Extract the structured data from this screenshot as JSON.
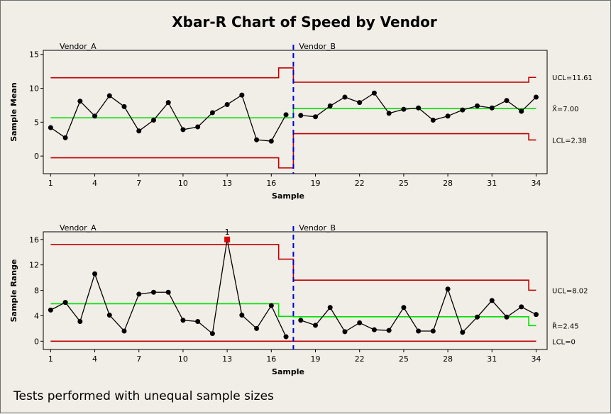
{
  "title": "Xbar-R Chart of Speed by Vendor",
  "footnote": "Tests performed with unequal sample sizes",
  "chart_data": [
    {
      "type": "line",
      "name": "xbar",
      "ylabel": "Sample Mean",
      "xlabel": "Sample",
      "xticks": [
        1,
        4,
        7,
        10,
        13,
        16,
        19,
        22,
        25,
        28,
        31,
        34
      ],
      "yticks": [
        0,
        5,
        10,
        15
      ],
      "ylim": [
        -2.6,
        15.6
      ],
      "stage_labels": [
        "Vendor_A",
        "Vendor_B"
      ],
      "stage_split": 17.5,
      "x": [
        1,
        2,
        3,
        4,
        5,
        6,
        7,
        8,
        9,
        10,
        11,
        12,
        13,
        14,
        15,
        16,
        17,
        18,
        19,
        20,
        21,
        22,
        23,
        24,
        25,
        26,
        27,
        28,
        29,
        30,
        31,
        32,
        33,
        34
      ],
      "values": [
        4.2,
        2.7,
        8.1,
        5.9,
        8.9,
        7.3,
        3.7,
        5.3,
        7.9,
        3.9,
        4.3,
        6.4,
        7.6,
        9.0,
        2.4,
        2.2,
        6.1,
        6.0,
        5.8,
        7.4,
        8.7,
        7.9,
        9.3,
        6.3,
        6.9,
        7.1,
        5.3,
        5.9,
        6.8,
        7.4,
        7.1,
        8.2,
        6.6,
        8.7
      ],
      "ucl_segments": [
        [
          1,
          16.5,
          11.55
        ],
        [
          16.5,
          17.5,
          13.0
        ],
        [
          17.5,
          33.5,
          10.9
        ],
        [
          33.5,
          34,
          11.61
        ]
      ],
      "center_segments": [
        [
          1,
          16.5,
          5.65
        ],
        [
          16.5,
          17.5,
          5.65
        ],
        [
          17.5,
          34,
          7.0
        ]
      ],
      "lcl_segments": [
        [
          1,
          16.5,
          -0.25
        ],
        [
          16.5,
          17.5,
          -1.75
        ],
        [
          17.5,
          33.5,
          3.3
        ],
        [
          33.5,
          34,
          2.38
        ]
      ],
      "limit_labels": [
        "UCL=11.61",
        "X̄=7.00",
        "LCL=2.38"
      ],
      "limit_label_values": [
        11.61,
        7.0,
        2.38
      ]
    },
    {
      "type": "line",
      "name": "range",
      "ylabel": "Sample Range",
      "xlabel": "Sample",
      "xticks": [
        1,
        4,
        7,
        10,
        13,
        16,
        19,
        22,
        25,
        28,
        31,
        34
      ],
      "yticks": [
        0,
        4,
        8,
        12,
        16
      ],
      "ylim": [
        -1.3,
        17.2
      ],
      "stage_labels": [
        "Vendor_A",
        "Vendor_B"
      ],
      "stage_split": 17.5,
      "x": [
        1,
        2,
        3,
        4,
        5,
        6,
        7,
        8,
        9,
        10,
        11,
        12,
        13,
        14,
        15,
        16,
        17,
        18,
        19,
        20,
        21,
        22,
        23,
        24,
        25,
        26,
        27,
        28,
        29,
        30,
        31,
        32,
        33,
        34
      ],
      "values": [
        4.9,
        6.1,
        3.1,
        10.6,
        4.1,
        1.6,
        7.4,
        7.7,
        7.7,
        3.3,
        3.1,
        1.2,
        16.0,
        4.1,
        2.0,
        5.6,
        0.7,
        3.3,
        2.5,
        5.3,
        1.5,
        2.9,
        1.8,
        1.7,
        5.3,
        1.6,
        1.6,
        8.2,
        1.4,
        3.8,
        6.4,
        3.8,
        5.4,
        4.2
      ],
      "flagged_points": [
        13
      ],
      "ucl_segments": [
        [
          1,
          16.5,
          15.2
        ],
        [
          16.5,
          17.5,
          12.9
        ],
        [
          17.5,
          33.5,
          9.6
        ],
        [
          33.5,
          34,
          8.02
        ]
      ],
      "center_segments": [
        [
          1,
          16.5,
          5.9
        ],
        [
          16.5,
          17.5,
          3.9
        ],
        [
          17.5,
          33.5,
          3.85
        ],
        [
          33.5,
          34,
          2.45
        ]
      ],
      "lcl_segments": [
        [
          1,
          34,
          0.0
        ]
      ],
      "limit_labels": [
        "UCL=8.02",
        "R̄=2.45",
        "LCL=0"
      ],
      "limit_label_values": [
        8.02,
        2.45,
        0.0
      ]
    }
  ],
  "colors": {
    "data": "#000000",
    "limit": "#c00000",
    "center": "#00e000",
    "split": "#0000cc",
    "flag": "#dd0000"
  }
}
